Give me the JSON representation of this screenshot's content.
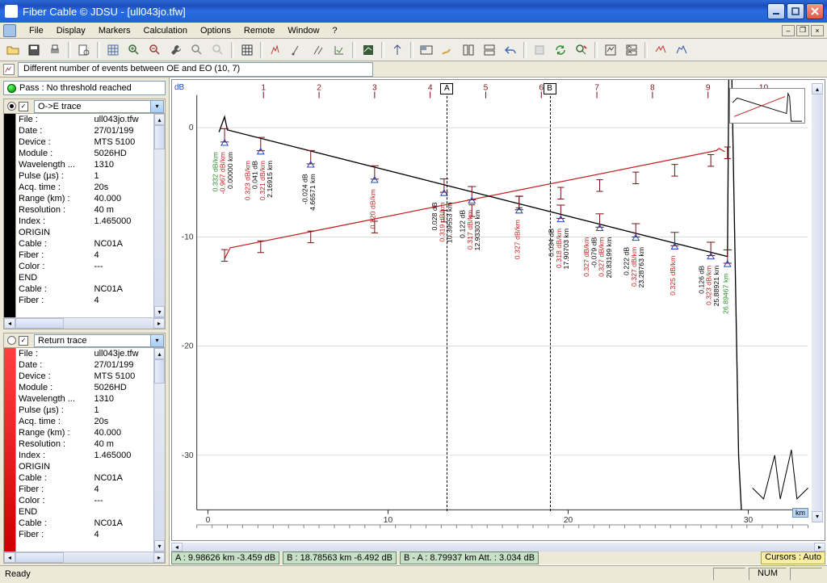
{
  "title": "Fiber Cable © JDSU - [ull043jo.tfw]",
  "menus": [
    "File",
    "Display",
    "Markers",
    "Calculation",
    "Options",
    "Remote",
    "Window",
    "?"
  ],
  "event_strip": "Different number of events between OE and EO (10, 7)",
  "pass_text": "Pass : No threshold reached",
  "trace_oe": {
    "combo": "O->E trace",
    "rows": [
      [
        "File :",
        "ull043jo.tfw"
      ],
      [
        "Date :",
        "27/01/199"
      ],
      [
        "Device :",
        "MTS 5100"
      ],
      [
        "Module :",
        "5026HD"
      ],
      [
        "Wavelength ...",
        "1310"
      ],
      [
        "Pulse (µs) :",
        "1"
      ],
      [
        "Acq. time :",
        "20s"
      ],
      [
        "Range (km) :",
        "40.000"
      ],
      [
        "Resolution :",
        "40 m"
      ],
      [
        "Index :",
        "1.465000"
      ],
      [
        "ORIGIN",
        ""
      ],
      [
        "  Cable :",
        "NC01A"
      ],
      [
        "  Fiber :",
        "4"
      ],
      [
        "  Color :",
        "---"
      ],
      [
        "END",
        ""
      ],
      [
        "  Cable :",
        "NC01A"
      ],
      [
        "  Fiber :",
        "4"
      ]
    ]
  },
  "trace_ret": {
    "combo": "Return trace",
    "rows": [
      [
        "File :",
        "ull043je.tfw"
      ],
      [
        "Date :",
        "27/01/199"
      ],
      [
        "Device :",
        "MTS 5100"
      ],
      [
        "Module :",
        "5026HD"
      ],
      [
        "Wavelength ...",
        "1310"
      ],
      [
        "Pulse (µs) :",
        "1"
      ],
      [
        "Acq. time :",
        "20s"
      ],
      [
        "Range (km) :",
        "40.000"
      ],
      [
        "Resolution :",
        "40 m"
      ],
      [
        "Index :",
        "1.465000"
      ],
      [
        "ORIGIN",
        ""
      ],
      [
        "  Cable :",
        "NC01A"
      ],
      [
        "  Fiber :",
        "4"
      ],
      [
        "  Color :",
        "---"
      ],
      [
        "END",
        ""
      ],
      [
        "  Cable :",
        "NC01A"
      ],
      [
        "  Fiber :",
        "4"
      ]
    ]
  },
  "plot": {
    "x_ticks": [
      0,
      1,
      2,
      3,
      4,
      5,
      6,
      7,
      8,
      9,
      10
    ],
    "x_tick_values": [
      0,
      3.08,
      6.17,
      9.25,
      12.34,
      15.42,
      18.51,
      21.59,
      24.68,
      27.76,
      30.85
    ],
    "x_bottom_ticks": [
      0,
      10,
      20,
      30
    ],
    "y_ticks": [
      0,
      -10,
      -20,
      -30
    ],
    "cursor_a": {
      "x_km": 9.98626,
      "idx": 4.3
    },
    "cursor_b": {
      "x_km": 18.78563,
      "idx": 6.15
    },
    "peak_label": "-24.04 dB",
    "peak_x": 9.35,
    "black_trace": {
      "points": [
        [
          0.2,
          -0.4
        ],
        [
          0.3,
          1.0
        ],
        [
          0.35,
          -0.2
        ],
        [
          9.35,
          -11.8
        ],
        [
          9.38,
          9.0
        ],
        [
          9.42,
          7.0
        ],
        [
          9.55,
          -30
        ],
        [
          9.6,
          -35
        ]
      ],
      "color": "#000000"
    },
    "red_trace": {
      "points": [
        [
          0.3,
          -12
        ],
        [
          0.4,
          -11
        ],
        [
          9.15,
          -2.1
        ],
        [
          9.2,
          -1.9
        ],
        [
          9.3,
          -2.2
        ]
      ],
      "color": "#c22020"
    },
    "bottom_noise": {
      "points": [
        [
          9.8,
          -33
        ],
        [
          10.0,
          -34
        ],
        [
          10.2,
          -30
        ],
        [
          10.3,
          -34
        ],
        [
          10.5,
          -29.5
        ],
        [
          10.6,
          -34
        ],
        [
          10.8,
          -33
        ]
      ],
      "color": "#000000"
    },
    "events": [
      {
        "x": 0.3,
        "yb": -0.7,
        "yr": -11.7,
        "texts": [
          [
            "g",
            "0.332 dB/km"
          ],
          [
            "r",
            "-0.967 dB/km"
          ],
          [
            "k",
            "0.00000 km"
          ]
        ]
      },
      {
        "x": 0.95,
        "yb": -1.5,
        "yr": -10.9,
        "texts": [
          [
            "r",
            "0.323 dB/km"
          ],
          [
            "k",
            "0.041 dB"
          ],
          [
            "r",
            "0.321 dB/km"
          ],
          [
            "k",
            "2.16915 km"
          ]
        ]
      },
      {
        "x": 1.85,
        "yb": -2.7,
        "yr": -10.0,
        "texts": [
          [
            "k",
            "-0.024 dB"
          ],
          [
            "k",
            "4.66571 km"
          ]
        ]
      },
      {
        "x": 3.0,
        "yb": -4.1,
        "yr": -9.1,
        "texts": [
          [
            "r",
            "0.320 dB/km"
          ]
        ]
      },
      {
        "x": 4.25,
        "yb": -5.3,
        "yr": -8.1,
        "texts": [
          [
            "k",
            "0.028 dB"
          ],
          [
            "r",
            "0.319 dB/km"
          ],
          [
            "k",
            "10.39553 km"
          ]
        ]
      },
      {
        "x": 4.75,
        "yb": -6.0,
        "yr": -7.6,
        "texts": [
          [
            "k",
            "0.122 dB"
          ],
          [
            "r",
            "0.317 dB/km"
          ],
          [
            "k",
            "12.93303 km"
          ]
        ]
      },
      {
        "x": 5.6,
        "yb": -6.9,
        "yr": -6.8,
        "texts": [
          [
            "r",
            "0.327 dB/km"
          ]
        ]
      },
      {
        "x": 6.35,
        "yb": -7.7,
        "yr": -6.0,
        "texts": [
          [
            "k",
            "0.034 dB"
          ],
          [
            "r",
            "0.318 dB/km"
          ],
          [
            "k",
            "17.90703 km"
          ]
        ]
      },
      {
        "x": 7.05,
        "yb": -8.5,
        "yr": -5.3,
        "texts": [
          [
            "r",
            "0.327 dB/km"
          ],
          [
            "k",
            "-0.079 dB"
          ],
          [
            "r",
            "0.327 dB/km"
          ],
          [
            "k",
            "20.83199 km"
          ]
        ]
      },
      {
        "x": 7.7,
        "yb": -9.4,
        "yr": -4.6,
        "texts": [
          [
            "k",
            "0.222 dB"
          ],
          [
            "r",
            "0.327 dB/km"
          ],
          [
            "k",
            "23.28763 km"
          ]
        ]
      },
      {
        "x": 8.4,
        "yb": -10.2,
        "yr": -3.9,
        "texts": [
          [
            "r",
            "0.325 dB/km"
          ]
        ]
      },
      {
        "x": 9.05,
        "yb": -11.1,
        "yr": -3.0,
        "texts": [
          [
            "k",
            "0.126 dB"
          ],
          [
            "r",
            "0.323 dB/km"
          ],
          [
            "k",
            "25.88921 km"
          ]
        ]
      },
      {
        "x": 9.35,
        "yb": -11.8,
        "yr": -2.3,
        "texts": [
          [
            "g",
            "26.89467 km"
          ]
        ]
      }
    ]
  },
  "bottom_fields": {
    "a": "A : 9.98626 km  -3.459 dB",
    "b": "B : 18.78563 km  -6.492 dB",
    "ba": "B - A : 8.79937 km  Att. : 3.034 dB"
  },
  "cursors_mode": "Cursors : Auto",
  "status_ready": "Ready",
  "status_num": "NUM",
  "colors": {
    "grid": "#cfcfcf",
    "axis_num": "#7a1518",
    "black": "#000000",
    "red": "#c22020",
    "green": "#2a8a2a",
    "flag_bg": "#ffffff"
  }
}
